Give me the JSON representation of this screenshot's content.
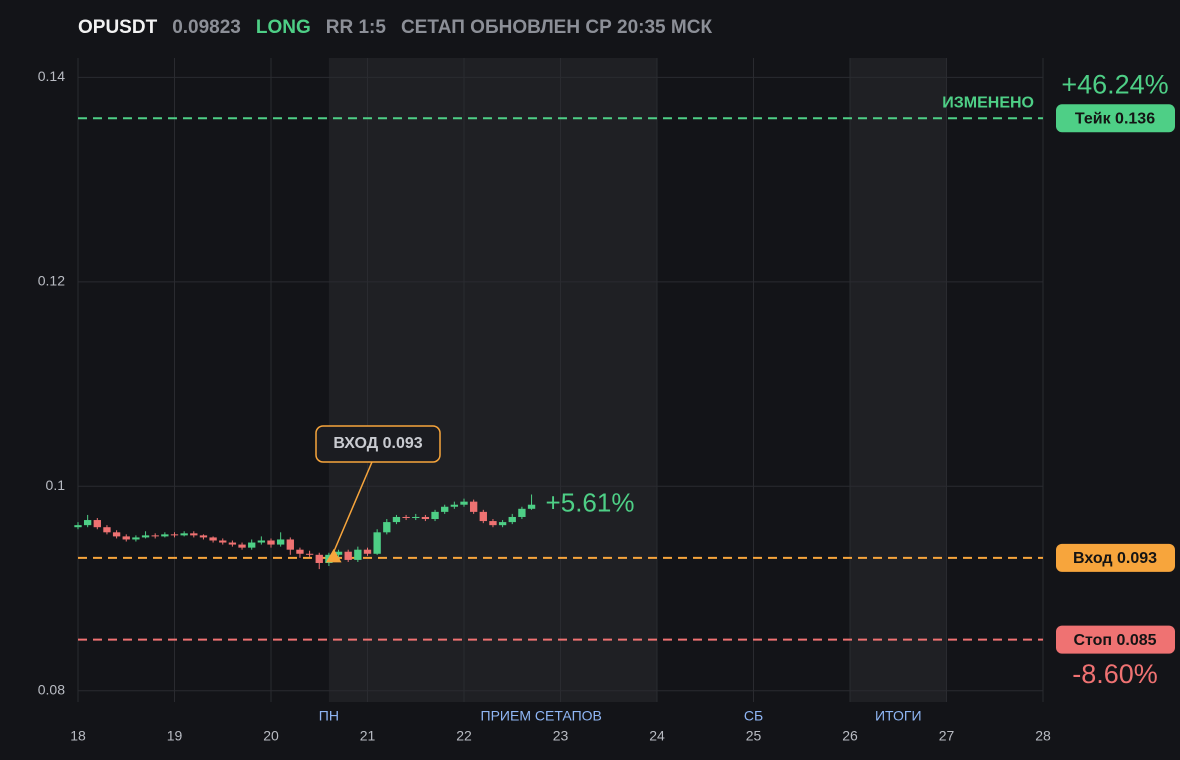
{
  "chart_data": {
    "type": "candlestick",
    "header": {
      "symbol": "OPUSDT",
      "price": "0.09823",
      "side": "LONG",
      "rr": "RR 1:5",
      "updated": "СЕТАП ОБНОВЛЕН СР 20:35 МСК"
    },
    "x": [
      18.0,
      18.1,
      18.2,
      18.3,
      18.4,
      18.5,
      18.6,
      18.7,
      18.8,
      18.9,
      19.0,
      19.1,
      19.2,
      19.3,
      19.4,
      19.5,
      19.6,
      19.7,
      19.8,
      19.9,
      20.0,
      20.1,
      20.2,
      20.3,
      20.4,
      20.5,
      20.6,
      20.7,
      20.8,
      20.9,
      21.0,
      21.1,
      21.2,
      21.3,
      21.4,
      21.5,
      21.6,
      21.7,
      21.8,
      21.9,
      22.0,
      22.1,
      22.2,
      22.3,
      22.4,
      22.5,
      22.6,
      22.7
    ],
    "open": [
      0.096,
      0.0962,
      0.0967,
      0.096,
      0.0955,
      0.0951,
      0.0948,
      0.095,
      0.0952,
      0.0951,
      0.0953,
      0.0952,
      0.0954,
      0.0952,
      0.095,
      0.0947,
      0.0945,
      0.0943,
      0.094,
      0.0945,
      0.0947,
      0.0943,
      0.0948,
      0.0938,
      0.0934,
      0.0933,
      0.0925,
      0.0933,
      0.0936,
      0.0928,
      0.0938,
      0.0934,
      0.0955,
      0.0965,
      0.097,
      0.0969,
      0.097,
      0.0968,
      0.0975,
      0.098,
      0.0982,
      0.0985,
      0.0975,
      0.0966,
      0.0962,
      0.0965,
      0.097,
      0.0978
    ],
    "high": [
      0.0965,
      0.0972,
      0.0969,
      0.0962,
      0.0957,
      0.0953,
      0.0952,
      0.0956,
      0.0954,
      0.0955,
      0.0955,
      0.0956,
      0.0956,
      0.0953,
      0.0951,
      0.0949,
      0.0947,
      0.0945,
      0.0948,
      0.0951,
      0.0949,
      0.0955,
      0.095,
      0.094,
      0.0937,
      0.0935,
      0.0935,
      0.0938,
      0.0938,
      0.0941,
      0.094,
      0.0958,
      0.0968,
      0.0972,
      0.0972,
      0.0973,
      0.0972,
      0.0977,
      0.0982,
      0.0985,
      0.0988,
      0.0987,
      0.0977,
      0.0968,
      0.0967,
      0.0973,
      0.098,
      0.0992
    ],
    "low": [
      0.0958,
      0.096,
      0.0958,
      0.0953,
      0.0949,
      0.0946,
      0.0946,
      0.0949,
      0.0949,
      0.095,
      0.095,
      0.0951,
      0.095,
      0.0948,
      0.0945,
      0.0943,
      0.0941,
      0.0938,
      0.0938,
      0.0943,
      0.094,
      0.0941,
      0.0933,
      0.093,
      0.0931,
      0.0919,
      0.0922,
      0.093,
      0.0926,
      0.0926,
      0.0932,
      0.0933,
      0.0953,
      0.0963,
      0.0967,
      0.0967,
      0.0966,
      0.0966,
      0.0973,
      0.0978,
      0.098,
      0.0973,
      0.0964,
      0.096,
      0.096,
      0.0963,
      0.0968,
      0.0977
    ],
    "close": [
      0.0962,
      0.0967,
      0.096,
      0.0955,
      0.0951,
      0.0948,
      0.095,
      0.0952,
      0.0951,
      0.0953,
      0.0952,
      0.0954,
      0.0952,
      0.095,
      0.0947,
      0.0945,
      0.0943,
      0.094,
      0.0945,
      0.0947,
      0.0943,
      0.0948,
      0.0938,
      0.0934,
      0.0933,
      0.0925,
      0.0933,
      0.0936,
      0.0928,
      0.0938,
      0.0934,
      0.0955,
      0.0965,
      0.097,
      0.0969,
      0.097,
      0.0968,
      0.0975,
      0.098,
      0.0982,
      0.0985,
      0.0975,
      0.0966,
      0.0962,
      0.0965,
      0.097,
      0.0978,
      0.0982
    ],
    "up_color": "#4ecf86",
    "down_color": "#ef7272",
    "last_change": "+5.61%",
    "xlim": [
      18,
      28
    ],
    "xticks": [
      18,
      19,
      20,
      21,
      22,
      23,
      24,
      25,
      26,
      27,
      28
    ],
    "ylim": [
      0.0789,
      0.1419
    ],
    "yticks": [
      0.08,
      0.1,
      0.12,
      0.14
    ],
    "grid": true,
    "shaded": [
      {
        "start": 20.6,
        "end": 24
      },
      {
        "start": 26,
        "end": 27
      }
    ],
    "sessions": [
      {
        "label": "ПН",
        "x": 20.6
      },
      {
        "label": "ПРИЕМ СЕТАПОВ",
        "x": 22.8
      },
      {
        "label": "СБ",
        "x": 25
      },
      {
        "label": "ИТОГИ",
        "x": 26.5
      }
    ],
    "levels": [
      {
        "value": 0.136,
        "label": "Тейк 0.136",
        "color": "#4ecf86",
        "change": "+46.24%",
        "note": "ИЗМЕНЕНО"
      },
      {
        "value": 0.093,
        "label": "Вход 0.093",
        "color": "#f7a53c"
      },
      {
        "value": 0.085,
        "label": "Стоп 0.085",
        "color": "#ef7272",
        "change": "-8.60%"
      }
    ],
    "entry_marker": {
      "x": 20.65,
      "value": 0.093,
      "label": "ВХОД 0.093"
    }
  }
}
